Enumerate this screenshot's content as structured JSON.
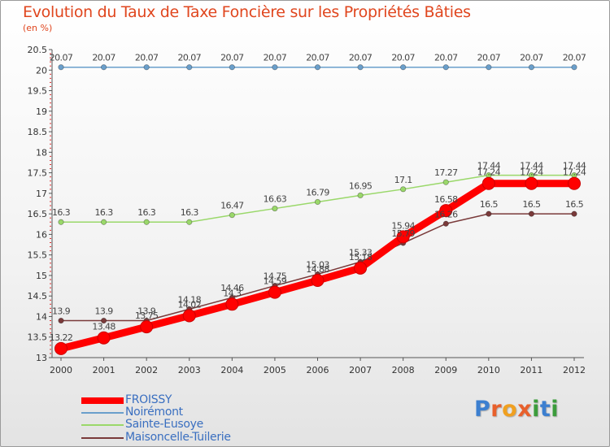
{
  "chart_data": {
    "type": "line",
    "title": "Evolution du Taux de Taxe Foncière sur les Propriétés Bâties",
    "unit_label": "(en %)",
    "x": [
      "2000",
      "2001",
      "2002",
      "2003",
      "2004",
      "2005",
      "2006",
      "2007",
      "2008",
      "2009",
      "2010",
      "2011",
      "2012"
    ],
    "ylim": [
      13,
      20.5
    ],
    "yticks": [
      "13",
      "13.5",
      "14",
      "14.5",
      "15",
      "15.5",
      "16",
      "16.5",
      "17",
      "17.5",
      "18",
      "18.5",
      "19",
      "19.5",
      "20",
      "20.5"
    ],
    "series": [
      {
        "name": "FROISSY",
        "color": "#ff0000",
        "values": [
          13.22,
          13.48,
          13.75,
          14.02,
          14.3,
          14.59,
          14.88,
          15.18,
          15.94,
          16.58,
          17.24,
          17.24,
          17.24
        ],
        "labels": [
          "13.22",
          "13.48",
          "13.75",
          "14.02",
          "14.3",
          "14.59",
          "14.88",
          "15.18",
          "15.94",
          "16.58",
          "17.24",
          "17.24",
          "17.24"
        ]
      },
      {
        "name": "Noirémont",
        "color": "#6a9fcb",
        "values": [
          20.07,
          20.07,
          20.07,
          20.07,
          20.07,
          20.07,
          20.07,
          20.07,
          20.07,
          20.07,
          20.07,
          20.07,
          20.07
        ],
        "labels": [
          "20.07",
          "20.07",
          "20.07",
          "20.07",
          "20.07",
          "20.07",
          "20.07",
          "20.07",
          "20.07",
          "20.07",
          "20.07",
          "20.07",
          "20.07"
        ]
      },
      {
        "name": "Sainte-Eusoye",
        "color": "#9ad86a",
        "values": [
          16.3,
          16.3,
          16.3,
          16.3,
          16.47,
          16.63,
          16.79,
          16.95,
          17.1,
          17.27,
          17.44,
          17.44,
          17.44
        ],
        "labels": [
          "16.3",
          "16.3",
          "16.3",
          "16.3",
          "16.47",
          "16.63",
          "16.79",
          "16.95",
          "17.1",
          "17.27",
          "17.44",
          "17.44",
          "17.44"
        ]
      },
      {
        "name": "Maisoncelle-Tuilerie",
        "color": "#7a3a3a",
        "values": [
          13.9,
          13.9,
          13.9,
          14.18,
          14.46,
          14.75,
          15.03,
          15.33,
          15.79,
          16.26,
          16.5,
          16.5,
          16.5
        ],
        "labels": [
          "13.9",
          "13.9",
          "13.9",
          "14.18",
          "14.46",
          "14.75",
          "15.03",
          "15.33",
          "15.79",
          "16.26",
          "16.5",
          "16.5",
          "16.5"
        ]
      }
    ],
    "legend_position": "bottom-left",
    "grid": false
  },
  "logo": {
    "letters": [
      "P",
      "r",
      "o",
      "x",
      "i",
      "t",
      "i"
    ],
    "colors": [
      "#3c7fd0",
      "#e8602c",
      "#f0a020",
      "#e8602c",
      "#3c9c3c",
      "#3c7fd0",
      "#3c9c3c"
    ]
  }
}
